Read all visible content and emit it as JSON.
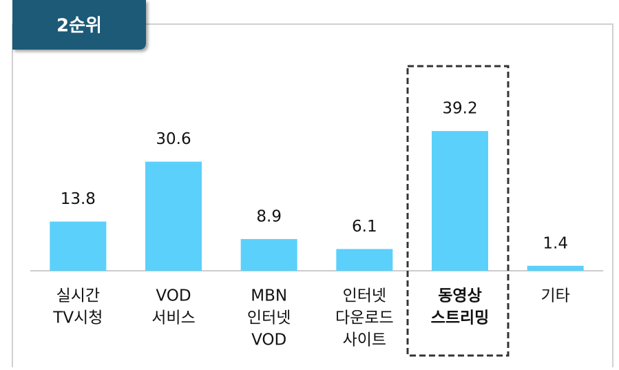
{
  "chart_data": {
    "type": "bar",
    "tab": "2순위",
    "categories": [
      [
        "실시간",
        "TV시청"
      ],
      [
        "VOD",
        "서비스"
      ],
      [
        "MBN",
        "인터넷",
        "VOD"
      ],
      [
        "인터넷",
        "다운로드",
        "사이트"
      ],
      [
        "동영상",
        "스트리밍"
      ],
      [
        "기타"
      ]
    ],
    "values": [
      13.8,
      30.6,
      8.9,
      6.1,
      39.2,
      1.4
    ],
    "color": "#5bd0fb",
    "ylim": [
      0,
      40
    ],
    "highlight": 4
  }
}
